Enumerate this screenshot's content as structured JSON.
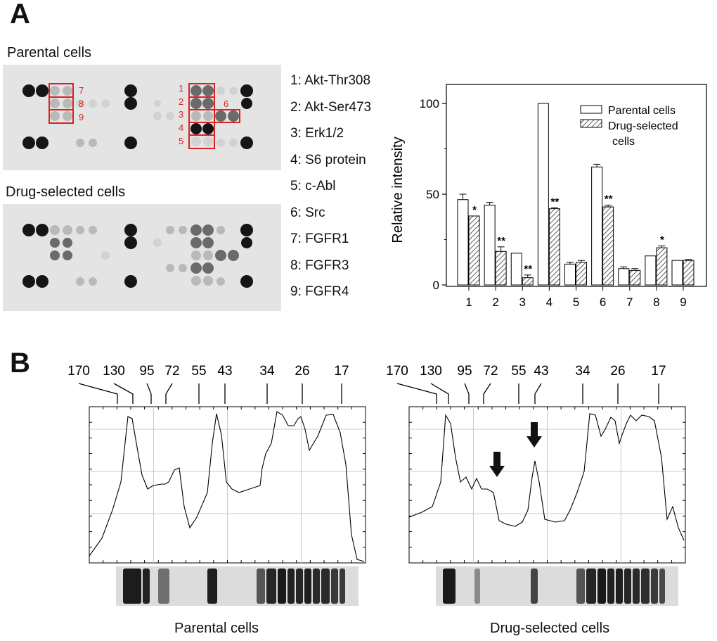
{
  "panel_a": {
    "letter": "A",
    "parental_caption": "Parental cells",
    "drug_caption": "Drug-selected cells",
    "box_numbers": [
      "1",
      "2",
      "3",
      "4",
      "5",
      "6",
      "7",
      "8",
      "9"
    ],
    "legend": [
      "1: Akt-Thr308",
      "2: Akt-Ser473",
      "3: Erk1/2",
      "4: S6 protein",
      "5: c-Abl",
      "6: Src",
      "7: FGFR1",
      "8: FGFR3",
      "9: FGFR4"
    ],
    "colors": {
      "box": "#e02020",
      "membrane": "#e4e4e4"
    }
  },
  "panel_b": {
    "letter": "B",
    "mw_markers": [
      "170",
      "130",
      "95",
      "72",
      "55",
      "43",
      "34",
      "26",
      "17"
    ],
    "left_caption": "Parental cells",
    "right_caption": "Drug-selected cells"
  },
  "chart_data": {
    "type": "bar",
    "title": "",
    "xlabel": "",
    "ylabel": "Relative intensity",
    "ylim": [
      0,
      110
    ],
    "yticks": [
      0,
      50,
      100
    ],
    "categories": [
      "1",
      "2",
      "3",
      "4",
      "5",
      "6",
      "7",
      "8",
      "9"
    ],
    "series": [
      {
        "name": "Parental cells",
        "pattern": "open",
        "values": [
          47,
          44,
          17.5,
          100,
          11.5,
          65,
          9,
          16,
          13.5
        ],
        "errors": [
          3,
          1.5,
          0,
          0,
          1,
          1.5,
          1,
          0,
          0
        ]
      },
      {
        "name": "Drug-selected cells",
        "pattern": "hatched",
        "values": [
          38,
          18.5,
          4,
          42,
          12.5,
          43,
          8,
          20.5,
          13.5
        ],
        "errors": [
          0,
          2.5,
          1.5,
          0.5,
          1,
          1,
          1,
          1,
          0.5
        ]
      }
    ],
    "significance": [
      "*",
      "**",
      "**",
      "**",
      "",
      "**",
      "",
      "*",
      ""
    ],
    "legend_items": [
      "Parental cells",
      "Drug-selected",
      "cells"
    ],
    "legend_position": "top-right"
  }
}
